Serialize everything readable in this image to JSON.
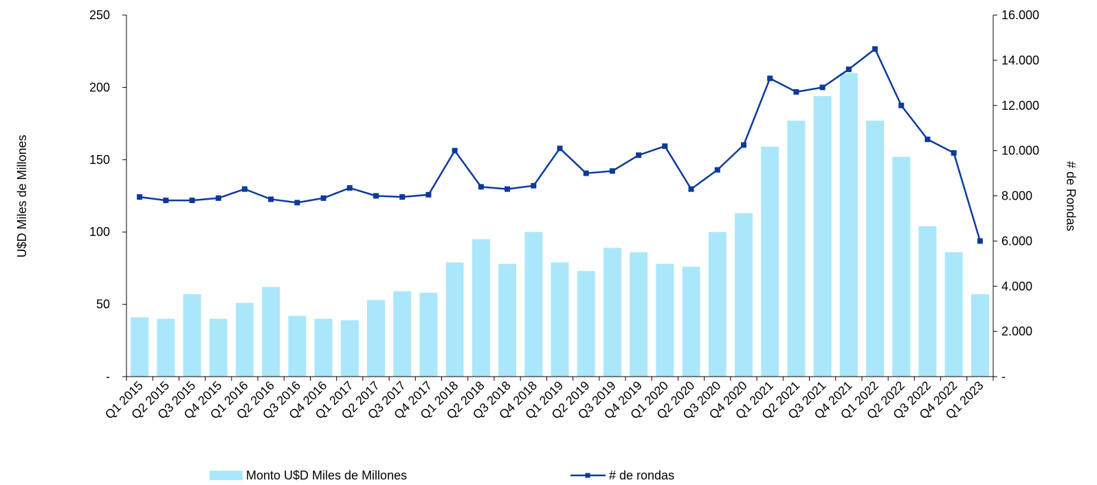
{
  "colors": {
    "bar": "#abe7fb",
    "line": "#0a3a9b",
    "axis": "#000000"
  },
  "chart_data": {
    "type": "bar",
    "categories": [
      "Q1 2015",
      "Q2 2015",
      "Q3 2015",
      "Q4 2015",
      "Q1 2016",
      "Q2 2016",
      "Q3 2016",
      "Q4 2016",
      "Q1 2017",
      "Q2 2017",
      "Q3 2017",
      "Q4 2017",
      "Q1 2018",
      "Q2 2018",
      "Q3 2018",
      "Q4 2018",
      "Q1 2019",
      "Q2 2019",
      "Q3 2019",
      "Q4 2019",
      "Q1 2020",
      "Q2 2020",
      "Q3 2020",
      "Q4 2020",
      "Q1 2021",
      "Q2 2021",
      "Q3 2021",
      "Q4 2021",
      "Q1 2022",
      "Q2 2022",
      "Q3 2022",
      "Q4 2022",
      "Q1 2023"
    ],
    "series": [
      {
        "name": "Monto U$D Miles de Millones",
        "type": "bar",
        "axis": "left",
        "values": [
          41,
          40,
          57,
          40,
          51,
          62,
          42,
          40,
          39,
          53,
          59,
          58,
          79,
          95,
          78,
          100,
          79,
          73,
          89,
          86,
          78,
          76,
          100,
          113,
          159,
          177,
          194,
          210,
          177,
          152,
          104,
          86,
          57
        ]
      },
      {
        "name": "# de rondas",
        "type": "line",
        "axis": "right",
        "values": [
          7950,
          7800,
          7800,
          7900,
          8300,
          7850,
          7700,
          7900,
          8350,
          8000,
          7950,
          8050,
          10000,
          8400,
          8300,
          8450,
          10100,
          9000,
          9100,
          9800,
          10200,
          8300,
          9150,
          10250,
          13200,
          12600,
          12800,
          13600,
          14500,
          12000,
          10500,
          9900,
          6000
        ]
      }
    ],
    "y_left": {
      "label": "U$D Miles de Millones",
      "ylim": [
        0,
        250
      ],
      "ticks": [
        "-",
        "50",
        "100",
        "150",
        "200",
        "250"
      ]
    },
    "y_right": {
      "label": "# de Rondas",
      "ylim": [
        0,
        16000
      ],
      "ticks": [
        "-",
        "2.000",
        "4.000",
        "6.000",
        "8.000",
        "10.000",
        "12.000",
        "14.000",
        "16.000"
      ]
    },
    "grid": false,
    "legend_position": "bottom"
  }
}
